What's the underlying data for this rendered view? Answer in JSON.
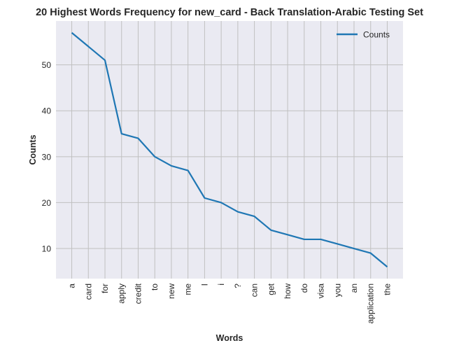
{
  "chart_data": {
    "type": "line",
    "title": "20 Highest Words Frequency for new_card - Back Translation-Arabic Testing Set",
    "xlabel": "Words",
    "ylabel": "Counts",
    "categories": [
      "a",
      "card",
      "for",
      "apply",
      "credit",
      "to",
      "new",
      "me",
      "I",
      "i",
      "?",
      "can",
      "get",
      "how",
      "do",
      "visa",
      "you",
      "an",
      "application",
      "the"
    ],
    "series": [
      {
        "name": "Counts",
        "values": [
          57,
          54,
          51,
          35,
          34,
          30,
          28,
          27,
          21,
          20,
          18,
          17,
          14,
          13,
          12,
          12,
          11,
          10,
          9,
          6
        ],
        "color": "#1f77b4"
      }
    ],
    "yticks": [
      10,
      20,
      30,
      40,
      50
    ],
    "ylim": [
      3.45,
      59.55
    ],
    "grid": true,
    "legend_position": "top-right",
    "background_color": "#eaeaf2",
    "grid_color": "#c0c0c0"
  }
}
